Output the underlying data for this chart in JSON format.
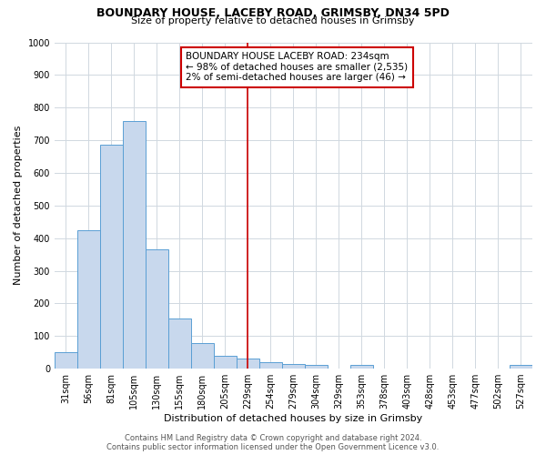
{
  "title1": "BOUNDARY HOUSE, LACEBY ROAD, GRIMSBY, DN34 5PD",
  "title2": "Size of property relative to detached houses in Grimsby",
  "xlabel": "Distribution of detached houses by size in Grimsby",
  "ylabel": "Number of detached properties",
  "bar_labels": [
    "31sqm",
    "56sqm",
    "81sqm",
    "105sqm",
    "130sqm",
    "155sqm",
    "180sqm",
    "205sqm",
    "229sqm",
    "254sqm",
    "279sqm",
    "304sqm",
    "329sqm",
    "353sqm",
    "378sqm",
    "403sqm",
    "428sqm",
    "453sqm",
    "477sqm",
    "502sqm",
    "527sqm"
  ],
  "bar_values": [
    50,
    425,
    685,
    760,
    365,
    155,
    78,
    40,
    30,
    20,
    15,
    10,
    0,
    10,
    0,
    0,
    0,
    0,
    0,
    0,
    10
  ],
  "bar_color": "#c8d8ed",
  "bar_edge_color": "#5a9fd4",
  "vline_x_index": 8,
  "vline_color": "#cc0000",
  "ylim": [
    0,
    1000
  ],
  "yticks": [
    0,
    100,
    200,
    300,
    400,
    500,
    600,
    700,
    800,
    900,
    1000
  ],
  "annotation_box_text": "BOUNDARY HOUSE LACEBY ROAD: 234sqm\n← 98% of detached houses are smaller (2,535)\n2% of semi-detached houses are larger (46) →",
  "annotation_box_color": "#ffffff",
  "annotation_box_edge_color": "#cc0000",
  "bg_color": "#ffffff",
  "grid_color": "#d0d8e0",
  "footer1": "Contains HM Land Registry data © Crown copyright and database right 2024.",
  "footer2": "Contains public sector information licensed under the Open Government Licence v3.0.",
  "title1_fontsize": 9,
  "title2_fontsize": 8,
  "xlabel_fontsize": 8,
  "ylabel_fontsize": 8,
  "tick_fontsize": 7,
  "annotation_fontsize": 7.5,
  "footer_fontsize": 6
}
